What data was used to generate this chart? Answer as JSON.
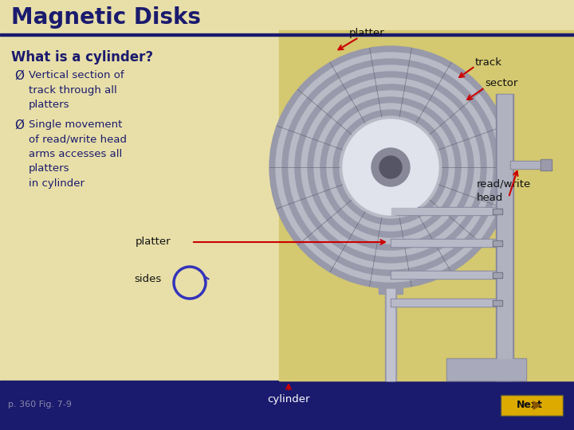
{
  "title": "Magnetic Disks",
  "title_color": "#1a1a6e",
  "bg_light": "#e8dfa8",
  "bg_right": "#d4c870",
  "bg_dark": "#1a1a6e",
  "heading_text": "What is a cylinder?",
  "bullet1_sym": "Ø",
  "bullet1": "Vertical section of\ntrack through all\nplatters",
  "bullet2_sym": "Ø",
  "bullet2": "Single movement\nof read/write head\narms accesses all\nplatters\nin cylinder",
  "label_platter_top": "platter",
  "label_track": "track",
  "label_sector": "sector",
  "label_rw": "read/write\nhead",
  "label_platter_bot": "platter",
  "label_sides": "sides",
  "label_cylinder": "cylinder",
  "label_page": "p. 360 Fig. 7-9",
  "red": "#cc0000",
  "blue": "#3333bb",
  "disk_dark": "#9899aa",
  "disk_mid": "#b0b3c0",
  "disk_light": "#c8cad6",
  "disk_vlight": "#d8dae4",
  "hub_light": "#e0e2ec",
  "hub_gray": "#888898",
  "hub_dark": "#555566",
  "spindle_col": "#aaaabc",
  "arm_col": "#9898aa",
  "arm_light": "#b8bac8",
  "next_bg": "#ddaa00",
  "text_dark": "#111133",
  "sep_line_color": "#1a1a6e"
}
